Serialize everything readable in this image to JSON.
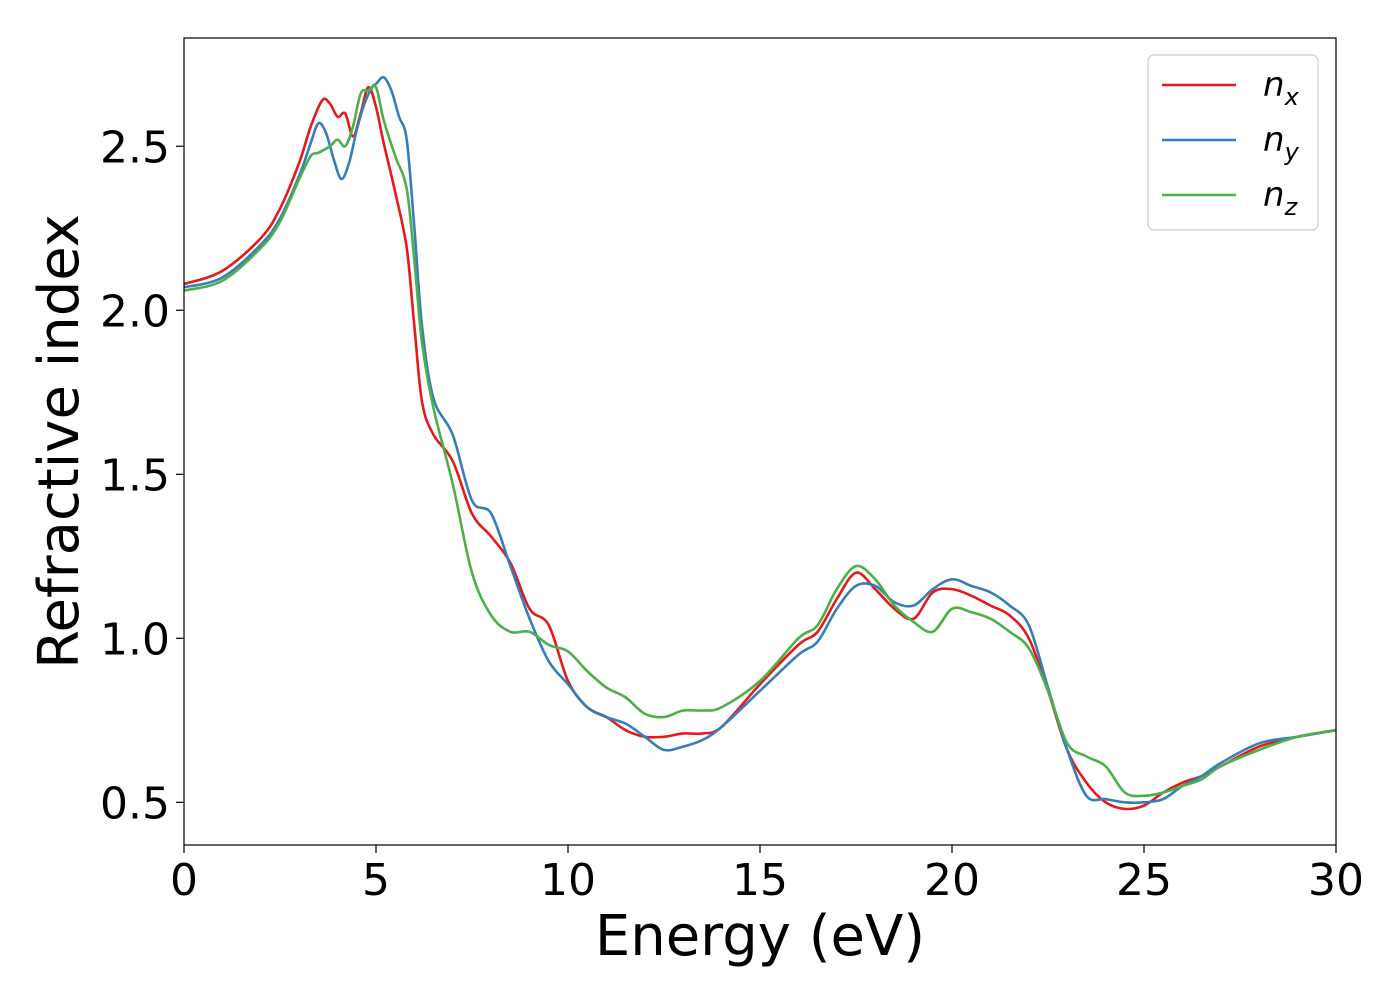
{
  "chart_data": {
    "type": "line",
    "title": "",
    "xlabel": "Energy (eV)",
    "ylabel": "Refractive index",
    "xlim": [
      0,
      30
    ],
    "ylim": [
      0.37,
      2.83
    ],
    "xticks": [
      0,
      5,
      10,
      15,
      20,
      25,
      30
    ],
    "xtick_labels": [
      "0",
      "5",
      "10",
      "15",
      "20",
      "25",
      "30"
    ],
    "yticks": [
      0.5,
      1.0,
      1.5,
      2.0,
      2.5
    ],
    "ytick_labels": [
      "0.5",
      "1.0",
      "1.5",
      "2.0",
      "2.5"
    ],
    "grid": false,
    "legend_position": "top-right",
    "series": [
      {
        "name": "n",
        "subscript": "x",
        "color": "#e41a1c",
        "x": [
          0,
          1,
          2,
          2.5,
          3,
          3.3,
          3.6,
          3.8,
          4.0,
          4.2,
          4.4,
          4.6,
          4.8,
          5.0,
          5.2,
          5.5,
          5.8,
          6.0,
          6.2,
          6.5,
          7.0,
          7.5,
          8.0,
          8.5,
          9.0,
          9.5,
          10.0,
          10.5,
          11.0,
          11.5,
          12.0,
          12.5,
          13.0,
          13.5,
          14.0,
          15.0,
          16.0,
          16.5,
          17.0,
          17.5,
          18.0,
          18.5,
          19.0,
          19.5,
          20.0,
          20.5,
          21.0,
          21.5,
          22.0,
          22.5,
          23.0,
          23.5,
          24.0,
          24.5,
          25.0,
          25.5,
          26.0,
          26.5,
          27.0,
          28.0,
          29.0,
          30.0
        ],
        "values": [
          2.08,
          2.12,
          2.22,
          2.31,
          2.45,
          2.56,
          2.64,
          2.63,
          2.59,
          2.6,
          2.53,
          2.6,
          2.68,
          2.62,
          2.51,
          2.36,
          2.19,
          1.95,
          1.72,
          1.62,
          1.54,
          1.38,
          1.31,
          1.23,
          1.09,
          1.04,
          0.87,
          0.79,
          0.76,
          0.72,
          0.7,
          0.7,
          0.71,
          0.71,
          0.73,
          0.86,
          0.98,
          1.02,
          1.12,
          1.2,
          1.15,
          1.09,
          1.06,
          1.14,
          1.15,
          1.13,
          1.1,
          1.07,
          1.0,
          0.84,
          0.66,
          0.56,
          0.5,
          0.48,
          0.49,
          0.53,
          0.56,
          0.58,
          0.61,
          0.67,
          0.7,
          0.72
        ]
      },
      {
        "name": "n",
        "subscript": "y",
        "color": "#377eb8",
        "x": [
          0,
          1,
          2,
          2.5,
          3,
          3.3,
          3.5,
          3.7,
          3.9,
          4.1,
          4.3,
          4.5,
          4.7,
          4.9,
          5.0,
          5.2,
          5.4,
          5.6,
          5.8,
          6.0,
          6.2,
          6.5,
          7.0,
          7.5,
          8.0,
          8.5,
          9.0,
          9.5,
          10.0,
          10.5,
          11.0,
          11.5,
          12.0,
          12.5,
          13.0,
          13.5,
          14.0,
          15.0,
          16.0,
          16.5,
          17.0,
          17.5,
          18.0,
          18.5,
          19.0,
          19.5,
          20.0,
          20.5,
          21.0,
          21.5,
          22.0,
          22.5,
          23.0,
          23.5,
          24.0,
          24.5,
          25.0,
          25.5,
          26.0,
          26.5,
          27.0,
          28.0,
          29.0,
          30.0
        ],
        "values": [
          2.07,
          2.1,
          2.2,
          2.28,
          2.41,
          2.51,
          2.57,
          2.54,
          2.46,
          2.4,
          2.45,
          2.55,
          2.63,
          2.68,
          2.69,
          2.71,
          2.67,
          2.59,
          2.52,
          2.25,
          1.95,
          1.73,
          1.62,
          1.42,
          1.38,
          1.22,
          1.06,
          0.93,
          0.86,
          0.79,
          0.76,
          0.74,
          0.7,
          0.66,
          0.67,
          0.69,
          0.73,
          0.84,
          0.95,
          0.99,
          1.09,
          1.16,
          1.16,
          1.11,
          1.1,
          1.15,
          1.18,
          1.16,
          1.14,
          1.1,
          1.04,
          0.85,
          0.66,
          0.52,
          0.51,
          0.5,
          0.5,
          0.51,
          0.55,
          0.58,
          0.62,
          0.68,
          0.7,
          0.72
        ]
      },
      {
        "name": "n",
        "subscript": "z",
        "color": "#4daf4a",
        "x": [
          0,
          1,
          2,
          2.5,
          3,
          3.3,
          3.5,
          3.8,
          4.0,
          4.2,
          4.4,
          4.6,
          4.8,
          5.0,
          5.2,
          5.5,
          5.8,
          6.0,
          6.2,
          6.5,
          7.0,
          7.5,
          8.0,
          8.5,
          9.0,
          9.5,
          10.0,
          10.5,
          11.0,
          11.5,
          12.0,
          12.5,
          13.0,
          13.5,
          14.0,
          15.0,
          16.0,
          16.5,
          17.0,
          17.5,
          18.0,
          18.5,
          19.0,
          19.5,
          20.0,
          20.5,
          21.0,
          21.5,
          22.0,
          22.5,
          23.0,
          23.5,
          24.0,
          24.5,
          25.0,
          25.5,
          26.0,
          26.5,
          27.0,
          28.0,
          29.0,
          30.0
        ],
        "values": [
          2.06,
          2.09,
          2.19,
          2.27,
          2.4,
          2.47,
          2.48,
          2.5,
          2.52,
          2.5,
          2.56,
          2.66,
          2.67,
          2.68,
          2.58,
          2.47,
          2.37,
          2.15,
          1.9,
          1.7,
          1.47,
          1.2,
          1.07,
          1.02,
          1.02,
          0.98,
          0.96,
          0.9,
          0.85,
          0.82,
          0.77,
          0.76,
          0.78,
          0.78,
          0.79,
          0.87,
          1.0,
          1.04,
          1.15,
          1.22,
          1.18,
          1.1,
          1.05,
          1.02,
          1.09,
          1.08,
          1.06,
          1.02,
          0.97,
          0.84,
          0.68,
          0.64,
          0.61,
          0.53,
          0.52,
          0.53,
          0.55,
          0.57,
          0.61,
          0.66,
          0.7,
          0.72
        ]
      }
    ]
  }
}
